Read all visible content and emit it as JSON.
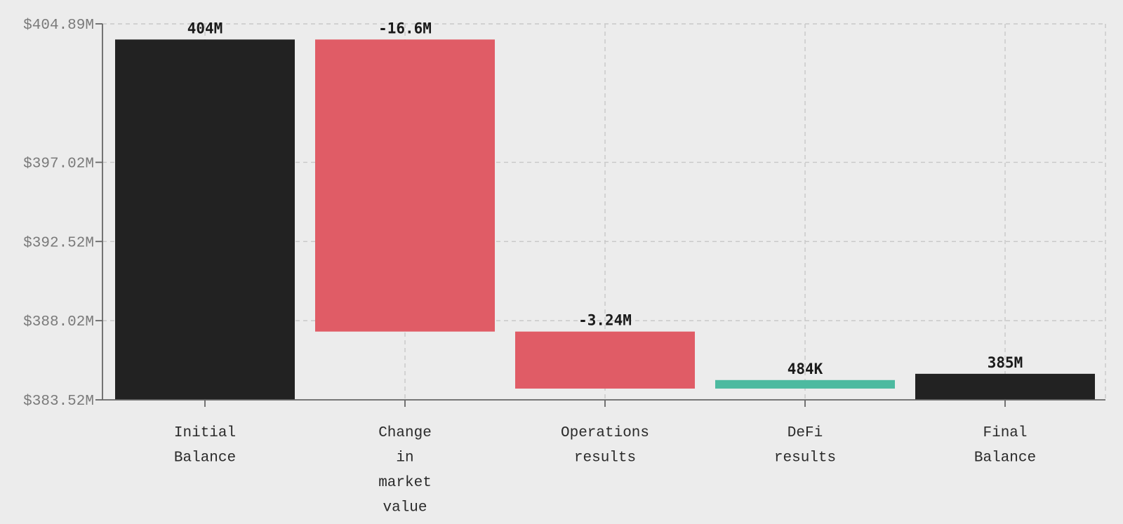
{
  "chart_data": {
    "type": "waterfall",
    "title": "",
    "xlabel": "",
    "ylabel": "",
    "categories": [
      [
        "Initial",
        "Balance"
      ],
      [
        "Change",
        "in",
        "market",
        "value"
      ],
      [
        "Operations",
        "results"
      ],
      [
        "DeFi",
        "results"
      ],
      [
        "Final",
        "Balance"
      ]
    ],
    "bars": [
      {
        "kind": "total",
        "start": 383.52,
        "end": 404.0,
        "label": "404M"
      },
      {
        "kind": "decrease",
        "start": 404.0,
        "end": 387.4,
        "label": "-16.6M"
      },
      {
        "kind": "decrease",
        "start": 387.4,
        "end": 384.16,
        "label": "-3.24M"
      },
      {
        "kind": "increase",
        "start": 384.16,
        "end": 384.644,
        "label": "484K"
      },
      {
        "kind": "total",
        "start": 383.52,
        "end": 385.0,
        "label": "385M"
      }
    ],
    "yticks": [
      {
        "value": 383.52,
        "label": "$383.52M"
      },
      {
        "value": 388.02,
        "label": "$388.02M"
      },
      {
        "value": 392.52,
        "label": "$392.52M"
      },
      {
        "value": 397.02,
        "label": "$397.02M"
      },
      {
        "value": 404.89,
        "label": "$404.89M"
      }
    ],
    "ylim": [
      383.52,
      404.89
    ],
    "grid": true,
    "colors": {
      "total": "#222222",
      "decrease": "#e05c66",
      "increase": "#4dbaa0"
    }
  }
}
